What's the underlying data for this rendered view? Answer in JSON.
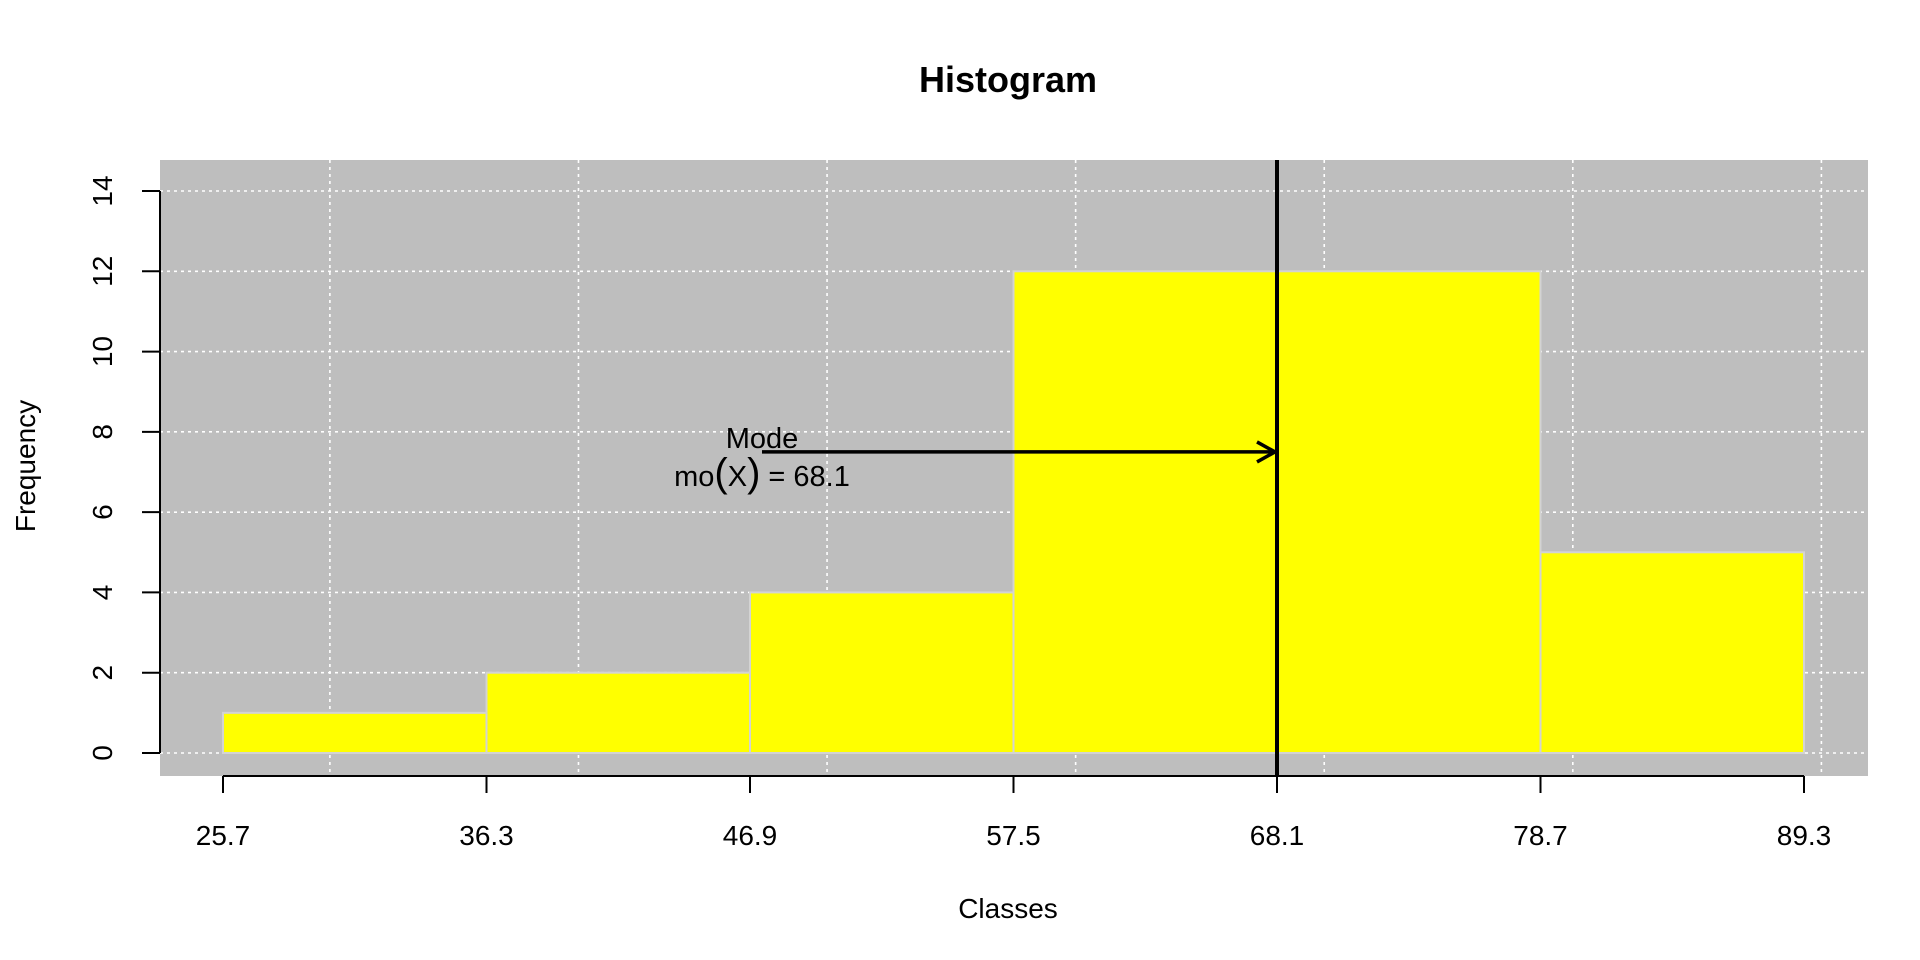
{
  "chart_data": {
    "type": "bar",
    "title": "Histogram",
    "xlabel": "Classes",
    "ylabel": "Frequency",
    "bin_edges": [
      25.7,
      36.3,
      46.9,
      57.5,
      68.1,
      78.7,
      89.3
    ],
    "x_tick_labels": [
      "25.7",
      "36.3",
      "46.9",
      "57.5",
      "68.1",
      "78.7",
      "89.3"
    ],
    "values": [
      1,
      2,
      4,
      12,
      12,
      5
    ],
    "ylim": [
      0,
      14
    ],
    "y_ticks": [
      0,
      2,
      4,
      6,
      8,
      10,
      12,
      14
    ],
    "y_tick_labels": [
      "0",
      "2",
      "4",
      "6",
      "8",
      "10",
      "12",
      "14"
    ],
    "grid": true,
    "colors": {
      "background": "#bebebe",
      "bar_fill": "#ffff00",
      "bar_border": "#d3d3d3",
      "grid": "#ffffff",
      "mode_line": "#000000"
    },
    "mode": {
      "value": 68.1,
      "label_line1": "Mode",
      "label_prefix": "mo",
      "label_var": "X",
      "label_suffix": "= 68.1",
      "arrow_y": 7.5
    }
  }
}
